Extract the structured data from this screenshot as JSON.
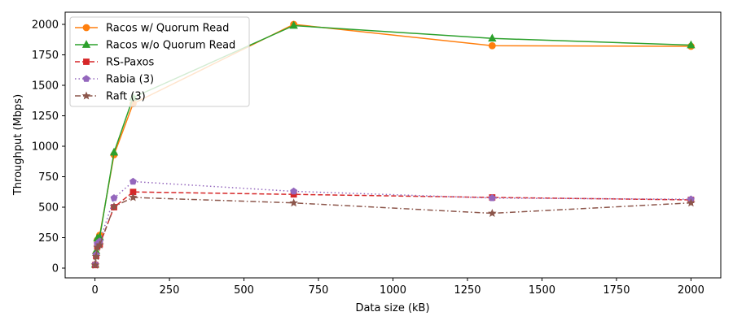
{
  "chart_data": {
    "type": "line",
    "title": "",
    "xlabel": "Data size (kB)",
    "ylabel": "Throughput (Mbps)",
    "xlim": [
      -100,
      2100
    ],
    "ylim": [
      -80,
      2100
    ],
    "xticks": [
      0,
      250,
      500,
      750,
      1000,
      1250,
      1500,
      1750,
      2000
    ],
    "yticks": [
      0,
      250,
      500,
      750,
      1000,
      1250,
      1500,
      1750,
      2000
    ],
    "grid": false,
    "legend_position": "top-left",
    "series": [
      {
        "name": "Racos w/ Quorum Read",
        "color": "#ff7f0e",
        "linestyle": "solid",
        "marker": "circle",
        "x": [
          1,
          4,
          8,
          16,
          64,
          128,
          667,
          1333,
          2000
        ],
        "y": [
          30,
          120,
          230,
          270,
          930,
          1350,
          2000,
          1825,
          1820
        ]
      },
      {
        "name": "Racos w/o Quorum Read",
        "color": "#2ca02c",
        "linestyle": "solid",
        "marker": "triangle",
        "x": [
          1,
          4,
          8,
          16,
          64,
          128,
          667,
          1333,
          2000
        ],
        "y": [
          30,
          140,
          245,
          255,
          950,
          1400,
          1990,
          1885,
          1830
        ]
      },
      {
        "name": "RS-Paxos",
        "color": "#d62728",
        "linestyle": "dashed",
        "marker": "square",
        "x": [
          1,
          4,
          8,
          16,
          64,
          128,
          667,
          1333,
          2000
        ],
        "y": [
          25,
          100,
          180,
          195,
          500,
          625,
          605,
          580,
          560
        ]
      },
      {
        "name": "Rabia (3)",
        "color": "#9467bd",
        "linestyle": "dotted",
        "marker": "pentagon",
        "x": [
          1,
          4,
          8,
          16,
          64,
          128,
          667,
          1333,
          2000
        ],
        "y": [
          30,
          110,
          200,
          220,
          575,
          710,
          630,
          575,
          565
        ]
      },
      {
        "name": "Raft (3)",
        "color": "#8c564b",
        "linestyle": "dashdot",
        "marker": "star",
        "x": [
          1,
          4,
          8,
          16,
          64,
          128,
          667,
          1333,
          2000
        ],
        "y": [
          25,
          95,
          170,
          190,
          505,
          580,
          535,
          450,
          535
        ]
      }
    ]
  }
}
